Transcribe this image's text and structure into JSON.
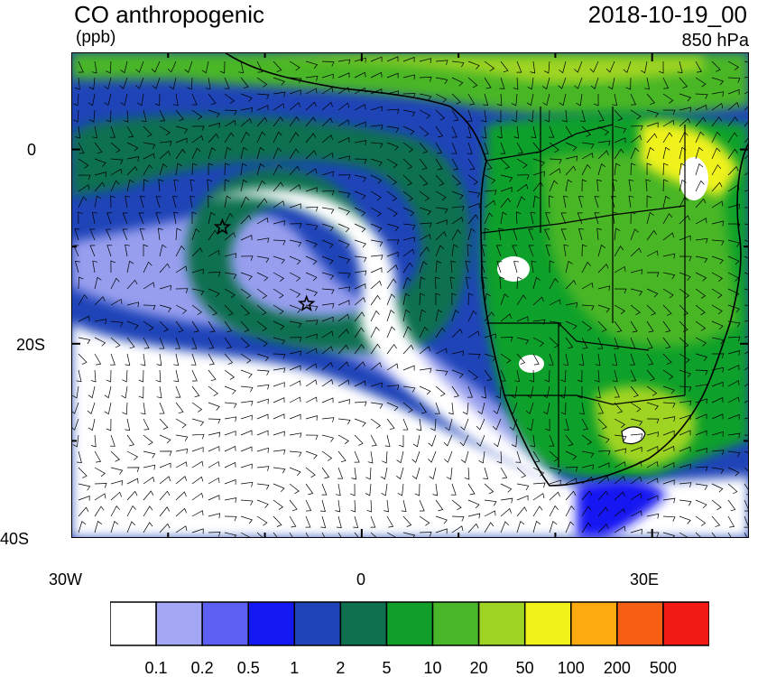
{
  "header": {
    "title": "CO anthropogenic",
    "units": "(ppb)",
    "datetime": "2018-10-19_00",
    "level": "850 hPa"
  },
  "map": {
    "lon_range": [
      -30,
      40
    ],
    "lat_range": [
      -40,
      10
    ],
    "y_tick_labels": [
      "0",
      "20S",
      "40S"
    ],
    "x_tick_labels": [
      "30W",
      "0",
      "30E"
    ],
    "marker_symbol": "star",
    "markers": [
      {
        "lon": -14.4,
        "lat": -8.0,
        "name": "star-marker-1"
      },
      {
        "lon": -5.7,
        "lat": -15.9,
        "name": "star-marker-2"
      }
    ]
  },
  "colorbar": {
    "colors": [
      "#ffffff",
      "#a4a8f4",
      "#5b60f2",
      "#1418f2",
      "#1f44b8",
      "#0f7050",
      "#10a02a",
      "#48b628",
      "#a0d424",
      "#f0f21a",
      "#fcaa10",
      "#f76014",
      "#f11a14"
    ],
    "labels": [
      "0.1",
      "0.2",
      "0.5",
      "1",
      "2",
      "5",
      "10",
      "20",
      "50",
      "100",
      "200",
      "500"
    ]
  }
}
